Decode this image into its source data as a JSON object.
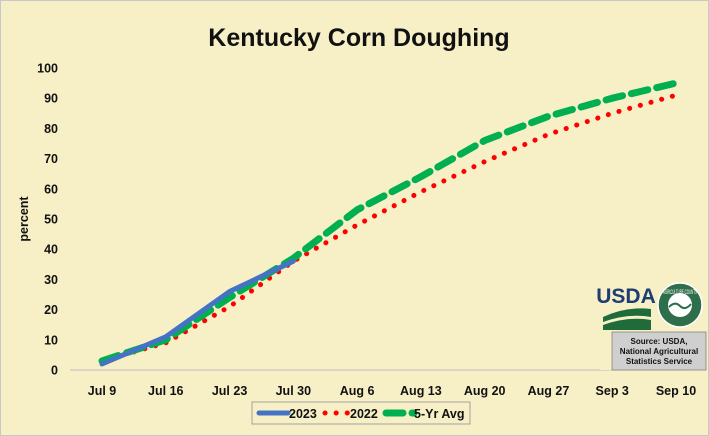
{
  "chart_data": {
    "type": "line",
    "title": "Kentucky Corn Doughing",
    "ylabel": "percent",
    "xlabel": "",
    "ylim": [
      0,
      100
    ],
    "yticks": [
      0,
      10,
      20,
      30,
      40,
      50,
      60,
      70,
      80,
      90,
      100
    ],
    "categories": [
      "Jul 9",
      "Jul 16",
      "Jul 23",
      "Jul 30",
      "Aug 6",
      "Aug 13",
      "Aug 20",
      "Aug 27",
      "Sep 3",
      "Sep 10"
    ],
    "grid": false,
    "legend_position": "bottom",
    "series": [
      {
        "name": "2023",
        "color": "#4472c4",
        "style": "solid",
        "values": [
          2,
          11,
          26,
          36,
          null,
          null,
          null,
          null,
          null,
          null
        ]
      },
      {
        "name": "2022",
        "color": "#ff0000",
        "style": "dotted",
        "values": [
          3,
          9,
          21,
          36,
          48,
          59,
          69,
          78,
          85,
          91
        ]
      },
      {
        "name": "5-Yr Avg",
        "color": "#00b050",
        "style": "dashed",
        "values": [
          3,
          10,
          24,
          37,
          53,
          64,
          76,
          84,
          90,
          95
        ]
      }
    ]
  },
  "source": {
    "logo_text": "USDA",
    "seal_text": "AGRICULTURE COUNTS",
    "line1": "Source: USDA,",
    "line2": "National Agricultural",
    "line3": "Statistics Service"
  }
}
